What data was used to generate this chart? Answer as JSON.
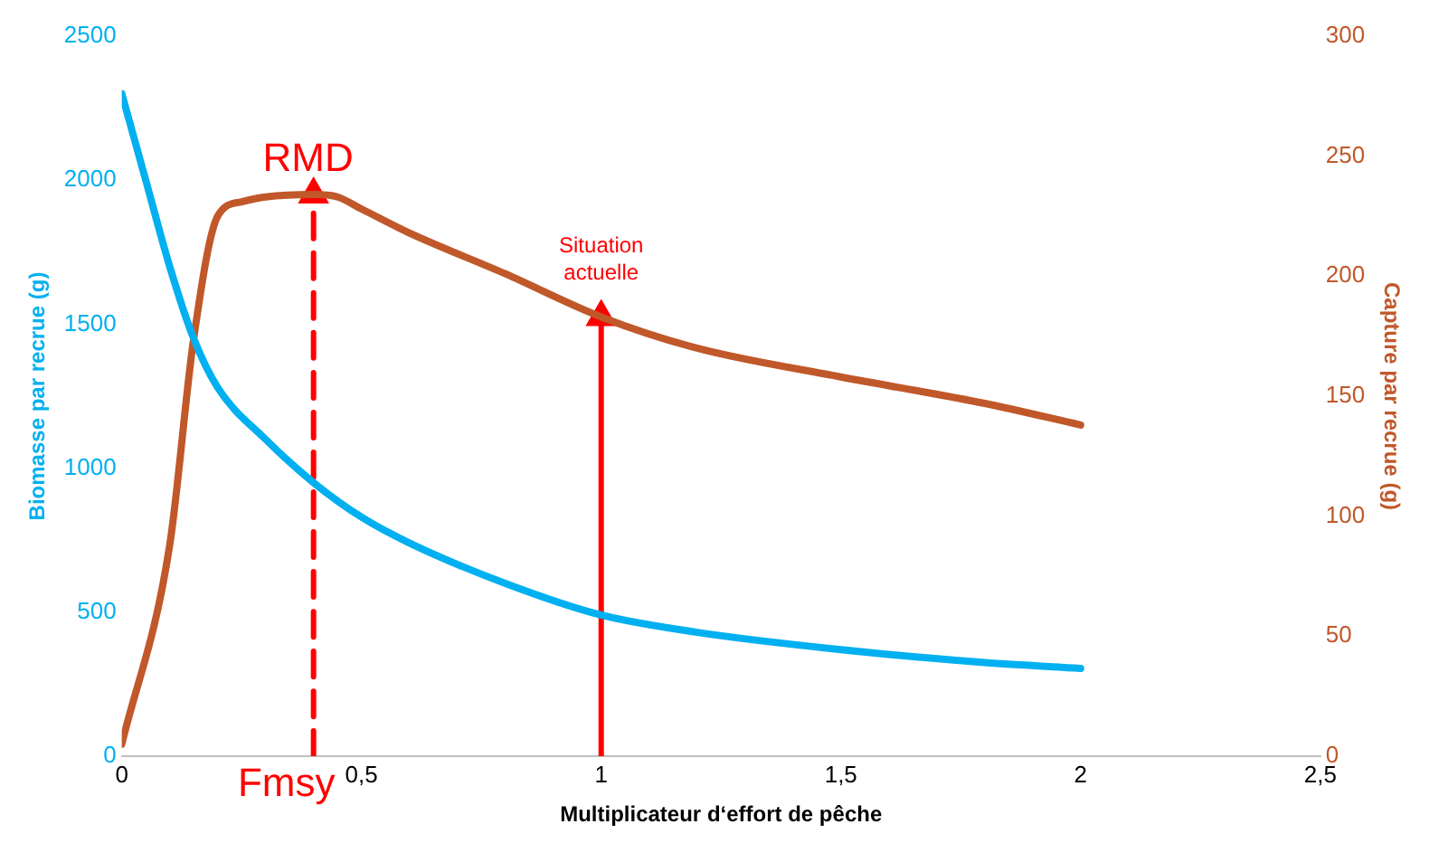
{
  "chart_data": {
    "type": "line",
    "xlabel": "Multiplicateur d‘effort de pêche",
    "ylabel": "Biomasse par recrue (g)",
    "y2label": "Capture par recrue (g)",
    "xlim": [
      0,
      2.5
    ],
    "xticks": [
      0,
      {
        "value": 0.5,
        "label": "0,5"
      },
      1,
      {
        "value": 1.5,
        "label": "1,5"
      },
      2,
      {
        "value": 2.5,
        "label": "2,5"
      }
    ],
    "ylim": [
      0,
      2500
    ],
    "yticks": [
      0,
      500,
      1000,
      1500,
      2000,
      2500
    ],
    "y2lim": [
      0,
      300
    ],
    "y2ticks": [
      0,
      50,
      100,
      150,
      200,
      250,
      300
    ],
    "grid": false,
    "legend": false,
    "marker": "none",
    "line_style": "solid",
    "series": [
      {
        "color": "#00b0f0",
        "x": [
          0,
          0.05,
          0.1,
          0.15,
          0.2,
          0.3,
          0.4,
          0.5,
          0.6,
          0.8,
          1,
          1.2,
          1.5,
          1.8,
          2
        ],
        "values": [
          2300,
          2000,
          1700,
          1450,
          1280,
          1100,
          950,
          830,
          740,
          600,
          490,
          430,
          370,
          325,
          305
        ]
      },
      {
        "color": "#c0582a",
        "axis": "y2",
        "x": [
          0,
          0.1,
          0.15,
          0.2,
          0.25,
          0.3,
          0.4,
          0.45,
          0.5,
          0.6,
          0.8,
          1,
          1.2,
          1.5,
          1.8,
          2
        ],
        "values": [
          5,
          88,
          174,
          225,
          231,
          233,
          234,
          233,
          228,
          218,
          201,
          183,
          170,
          158,
          147,
          138
        ]
      },
      {
        "color": "#ff0000",
        "x": [
          0.4,
          0.4
        ],
        "values": [
          0,
          1950
        ],
        "line_style": "dashed",
        "marker": "triangle"
      },
      {
        "color": "#ff0000",
        "x": [
          1,
          1
        ],
        "values": [
          0,
          1525
        ],
        "line_style": "solid",
        "marker": "triangle"
      }
    ],
    "annotations": [
      "RMD",
      "Fmsy",
      "Situation actuelle"
    ]
  }
}
